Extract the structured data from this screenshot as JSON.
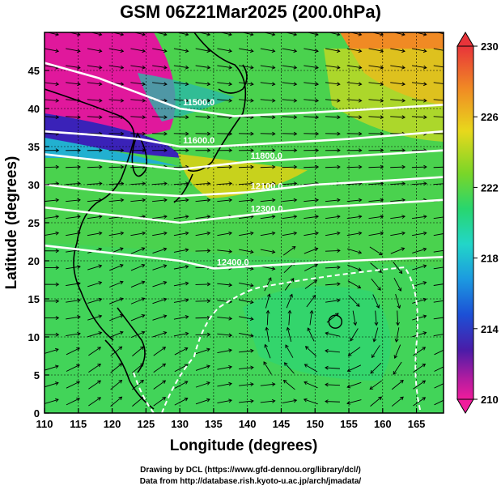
{
  "title": "GSM 06Z21Mar2025 (200.0hPa)",
  "axes": {
    "xlabel": "Longitude (degrees)",
    "ylabel": "Latitude  (degrees)",
    "xticks": [
      "110",
      "115",
      "120",
      "125",
      "130",
      "135",
      "140",
      "145",
      "150",
      "155",
      "160",
      "165"
    ],
    "yticks": [
      "0",
      "5",
      "10",
      "15",
      "20",
      "25",
      "30",
      "35",
      "40",
      "45"
    ],
    "xlim": [
      110,
      169
    ],
    "ylim": [
      0,
      50
    ]
  },
  "colorbar": {
    "labels": [
      "230",
      "226",
      "222",
      "218",
      "214",
      "210"
    ],
    "colors": [
      "#e8343a",
      "#f08a24",
      "#e8d81c",
      "#7ad628",
      "#28d66e",
      "#22d6c8",
      "#1c9ae0",
      "#1c50d6",
      "#4a1ca8",
      "#b01ca0",
      "#f01c9c"
    ]
  },
  "contour_labels": [
    "11600.0",
    "11500.0",
    "11800.0",
    "12100.0",
    "12300.0",
    "12400.0"
  ],
  "footer": {
    "line1": "Drawing by DCL (https://www.gfd-dennou.org/library/dcl/)",
    "line2": "Data from http://database.rish.kyoto-u.ac.jp/arch/jmadata/"
  },
  "chart_data": {
    "type": "heatmap",
    "title": "GSM 06Z21Mar2025 (200.0hPa)",
    "xlabel": "Longitude (degrees)",
    "ylabel": "Latitude  (degrees)",
    "xlim": [
      110,
      169
    ],
    "ylim": [
      0,
      50
    ],
    "colorbar_range": [
      210,
      230
    ],
    "colorbar_ticks": [
      210,
      214,
      218,
      222,
      226,
      230
    ],
    "contours": [
      {
        "label": "11500.0",
        "points": [
          [
            110,
            46
          ],
          [
            118,
            44
          ],
          [
            124,
            42
          ],
          [
            130,
            40
          ],
          [
            138,
            39
          ],
          [
            150,
            39.5
          ],
          [
            160,
            40
          ],
          [
            169,
            40.5
          ]
        ]
      },
      {
        "label": "11600.0",
        "points": [
          [
            110,
            37
          ],
          [
            118,
            36.5
          ],
          [
            124,
            36
          ],
          [
            130,
            35
          ],
          [
            135,
            35
          ],
          [
            145,
            35.5
          ],
          [
            155,
            36
          ],
          [
            169,
            37
          ]
        ]
      },
      {
        "label": "11800.0",
        "points": [
          [
            110,
            34
          ],
          [
            120,
            33
          ],
          [
            130,
            32
          ],
          [
            140,
            33
          ],
          [
            150,
            33.5
          ],
          [
            160,
            34
          ],
          [
            169,
            34.5
          ]
        ]
      },
      {
        "label": "12100.0",
        "points": [
          [
            110,
            30
          ],
          [
            120,
            29
          ],
          [
            130,
            28.5
          ],
          [
            140,
            29
          ],
          [
            150,
            30
          ],
          [
            160,
            30.5
          ],
          [
            169,
            31
          ]
        ]
      },
      {
        "label": "12300.0",
        "points": [
          [
            110,
            27
          ],
          [
            120,
            26
          ],
          [
            130,
            25
          ],
          [
            140,
            26
          ],
          [
            150,
            27
          ],
          [
            160,
            27.5
          ],
          [
            169,
            28
          ]
        ]
      },
      {
        "label": "12400.0",
        "points": [
          [
            110,
            22
          ],
          [
            120,
            21
          ],
          [
            130,
            20
          ],
          [
            135,
            19
          ],
          [
            145,
            19.5
          ],
          [
            155,
            20
          ],
          [
            169,
            20.5
          ]
        ]
      }
    ],
    "wind_vortex": {
      "lon": 153,
      "lat": 12
    }
  }
}
